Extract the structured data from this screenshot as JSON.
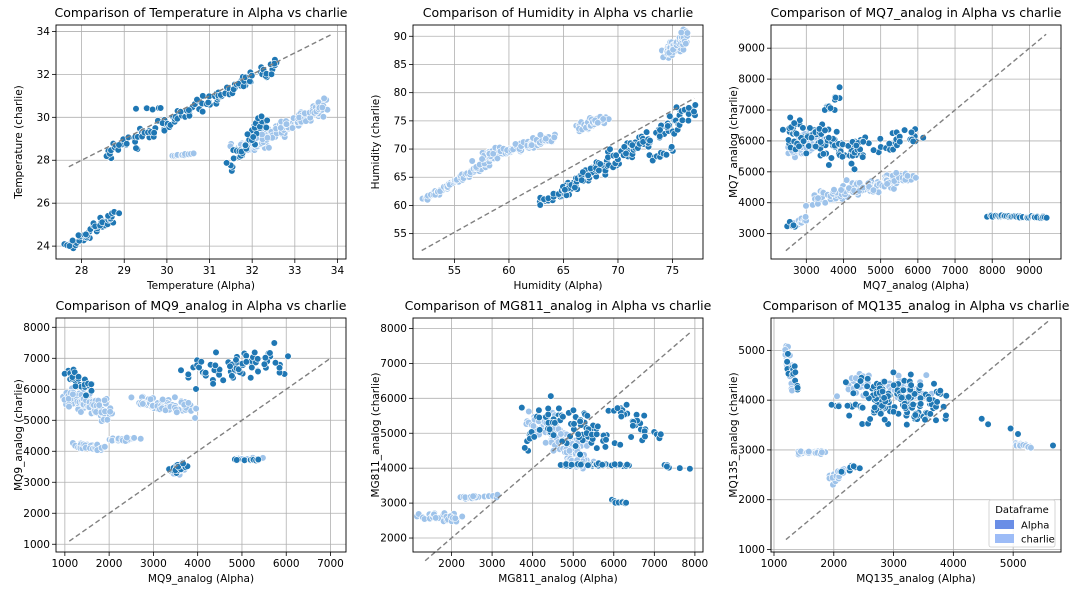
{
  "legend": {
    "title": "Dataframe",
    "entries": [
      {
        "label": "Alpha",
        "color": "#6a8ee6"
      },
      {
        "label": "charlie",
        "color": "#9dbcf7"
      }
    ]
  },
  "colors": {
    "dark_point": "#1f77b4",
    "light_point": "#9ec3ea",
    "diagonal": "#808080",
    "grid": "#b0b0b0"
  },
  "chart_data": [
    {
      "type": "scatter",
      "title": "Comparison of Temperature in Alpha vs charlie",
      "xlabel": "Temperature (Alpha)",
      "ylabel": "Temperature (charlie)",
      "xlim": [
        27.4,
        34.2
      ],
      "ylim": [
        23.4,
        34.3
      ],
      "xticks": [
        28,
        29,
        30,
        31,
        32,
        33,
        34
      ],
      "yticks": [
        24,
        26,
        28,
        30,
        32,
        34
      ],
      "diagonal": [
        [
          27.7,
          27.7
        ],
        [
          33.9,
          33.9
        ]
      ],
      "clusters": [
        {
          "tone": "dark",
          "from": [
            27.7,
            24.0
          ],
          "to": [
            28.8,
            25.5
          ],
          "n": 45,
          "spread": [
            0.12,
            0.2
          ]
        },
        {
          "tone": "dark",
          "from": [
            28.6,
            28.3
          ],
          "to": [
            32.6,
            32.4
          ],
          "n": 130,
          "spread": [
            0.12,
            0.3
          ]
        },
        {
          "tone": "dark",
          "from": [
            29.3,
            30.4
          ],
          "to": [
            29.9,
            30.5
          ],
          "n": 6,
          "spread": [
            0.1,
            0.1
          ]
        },
        {
          "tone": "dark",
          "from": [
            31.5,
            27.8
          ],
          "to": [
            32.3,
            30.0
          ],
          "n": 40,
          "spread": [
            0.15,
            0.3
          ]
        },
        {
          "tone": "light",
          "from": [
            30.1,
            28.2
          ],
          "to": [
            30.6,
            28.3
          ],
          "n": 12,
          "spread": [
            0.05,
            0.03
          ]
        },
        {
          "tone": "light",
          "from": [
            31.6,
            28.4
          ],
          "to": [
            33.8,
            30.6
          ],
          "n": 150,
          "spread": [
            0.15,
            0.25
          ]
        },
        {
          "tone": "light",
          "from": [
            31.8,
            28.6
          ],
          "to": [
            32.4,
            28.9
          ],
          "n": 40,
          "spread": [
            0.2,
            0.2
          ]
        }
      ]
    },
    {
      "type": "scatter",
      "title": "Comparison of Humidity in Alpha vs charlie",
      "xlabel": "Humidity (Alpha)",
      "ylabel": "Humidity (charlie)",
      "xlim": [
        51.2,
        77.8
      ],
      "ylim": [
        50.5,
        92.0
      ],
      "xticks": [
        55,
        60,
        65,
        70,
        75
      ],
      "yticks": [
        55,
        60,
        65,
        70,
        75,
        80,
        85,
        90
      ],
      "diagonal": [
        [
          52,
          52
        ],
        [
          77,
          79
        ]
      ],
      "clusters": [
        {
          "tone": "light",
          "from": [
            52.2,
            61.0
          ],
          "to": [
            58,
            67.5
          ],
          "n": 70,
          "spread": [
            0.3,
            0.4
          ]
        },
        {
          "tone": "light",
          "from": [
            57.5,
            68.5
          ],
          "to": [
            64,
            72
          ],
          "n": 110,
          "spread": [
            0.6,
            0.8
          ]
        },
        {
          "tone": "light",
          "from": [
            66.5,
            73.5
          ],
          "to": [
            68.5,
            75.5
          ],
          "n": 60,
          "spread": [
            0.5,
            0.8
          ]
        },
        {
          "tone": "light",
          "from": [
            74.3,
            87
          ],
          "to": [
            76.3,
            90
          ],
          "n": 80,
          "spread": [
            0.4,
            1.0
          ]
        },
        {
          "tone": "dark",
          "from": [
            63,
            60.5
          ],
          "to": [
            66,
            63
          ],
          "n": 25,
          "spread": [
            0.5,
            0.5
          ]
        },
        {
          "tone": "dark",
          "from": [
            64.5,
            62
          ],
          "to": [
            77,
            77
          ],
          "n": 140,
          "spread": [
            0.7,
            1.2
          ]
        },
        {
          "tone": "dark",
          "from": [
            73,
            68
          ],
          "to": [
            75,
            70
          ],
          "n": 12,
          "spread": [
            0.5,
            0.8
          ]
        }
      ]
    },
    {
      "type": "scatter",
      "title": "Comparison of MQ7_analog in Alpha vs charlie",
      "xlabel": "MQ7_analog (Alpha)",
      "ylabel": "MQ7_analog (charlie)",
      "xlim": [
        2050,
        9850
      ],
      "ylim": [
        2180,
        9750
      ],
      "xticks": [
        3000,
        4000,
        5000,
        6000,
        7000,
        8000,
        9000
      ],
      "yticks": [
        3000,
        4000,
        5000,
        6000,
        7000,
        8000,
        9000
      ],
      "diagonal": [
        [
          2450,
          2450
        ],
        [
          9450,
          9450
        ]
      ],
      "clusters": [
        {
          "tone": "dark",
          "from": [
            2500,
            6300
          ],
          "to": [
            4600,
            5600
          ],
          "n": 110,
          "spread": [
            250,
            500
          ]
        },
        {
          "tone": "dark",
          "from": [
            3500,
            7000
          ],
          "to": [
            3900,
            7500
          ],
          "n": 12,
          "spread": [
            150,
            250
          ]
        },
        {
          "tone": "dark",
          "from": [
            2500,
            3300
          ],
          "to": [
            2700,
            3300
          ],
          "n": 6,
          "spread": [
            60,
            80
          ]
        },
        {
          "tone": "dark",
          "from": [
            5000,
            5800
          ],
          "to": [
            6000,
            6300
          ],
          "n": 25,
          "spread": [
            250,
            300
          ]
        },
        {
          "tone": "dark",
          "from": [
            7900,
            3580
          ],
          "to": [
            9450,
            3520
          ],
          "n": 45,
          "spread": [
            40,
            30
          ]
        },
        {
          "tone": "light",
          "from": [
            2600,
            5600
          ],
          "to": [
            3300,
            6200
          ],
          "n": 60,
          "spread": [
            200,
            250
          ]
        },
        {
          "tone": "light",
          "from": [
            3200,
            4100
          ],
          "to": [
            5800,
            4900
          ],
          "n": 130,
          "spread": [
            250,
            200
          ]
        },
        {
          "tone": "light",
          "from": [
            2700,
            3300
          ],
          "to": [
            3000,
            3500
          ],
          "n": 12,
          "spread": [
            60,
            80
          ]
        }
      ]
    },
    {
      "type": "scatter",
      "title": "Comparison of MQ9_analog in Alpha vs charlie",
      "xlabel": "MQ9_analog (Alpha)",
      "ylabel": "MQ9_analog (charlie)",
      "xlim": [
        800,
        7350
      ],
      "ylim": [
        750,
        8300
      ],
      "xticks": [
        1000,
        2000,
        3000,
        4000,
        5000,
        6000,
        7000
      ],
      "yticks": [
        1000,
        2000,
        3000,
        4000,
        5000,
        6000,
        7000,
        8000
      ],
      "diagonal": [
        [
          1100,
          1100
        ],
        [
          7000,
          7000
        ]
      ],
      "clusters": [
        {
          "tone": "light",
          "from": [
            1050,
            5800
          ],
          "to": [
            2000,
            5300
          ],
          "n": 90,
          "spread": [
            120,
            300
          ]
        },
        {
          "tone": "light",
          "from": [
            1300,
            4200
          ],
          "to": [
            1800,
            4100
          ],
          "n": 40,
          "spread": [
            100,
            80
          ]
        },
        {
          "tone": "light",
          "from": [
            2000,
            4400
          ],
          "to": [
            2600,
            4400
          ],
          "n": 20,
          "spread": [
            100,
            60
          ]
        },
        {
          "tone": "light",
          "from": [
            2700,
            5600
          ],
          "to": [
            3800,
            5400
          ],
          "n": 70,
          "spread": [
            200,
            200
          ]
        },
        {
          "tone": "light",
          "from": [
            3400,
            3300
          ],
          "to": [
            3700,
            3500
          ],
          "n": 25,
          "spread": [
            80,
            120
          ]
        },
        {
          "tone": "light",
          "from": [
            4900,
            3750
          ],
          "to": [
            5400,
            3750
          ],
          "n": 25,
          "spread": [
            100,
            30
          ]
        },
        {
          "tone": "dark",
          "from": [
            1050,
            6500
          ],
          "to": [
            1600,
            6000
          ],
          "n": 25,
          "spread": [
            100,
            300
          ]
        },
        {
          "tone": "dark",
          "from": [
            3900,
            6500
          ],
          "to": [
            5800,
            7000
          ],
          "n": 70,
          "spread": [
            400,
            400
          ]
        },
        {
          "tone": "dark",
          "from": [
            3400,
            3300
          ],
          "to": [
            3700,
            3600
          ],
          "n": 20,
          "spread": [
            80,
            150
          ]
        },
        {
          "tone": "dark",
          "from": [
            4900,
            3720
          ],
          "to": [
            5400,
            3720
          ],
          "n": 12,
          "spread": [
            120,
            20
          ]
        }
      ]
    },
    {
      "type": "scatter",
      "title": "Comparison of MG811_analog in Alpha vs charlie",
      "xlabel": "MG811_analog (Alpha)",
      "ylabel": "MG811_analog (charlie)",
      "xlim": [
        1050,
        8200
      ],
      "ylim": [
        1600,
        8300
      ],
      "xticks": [
        2000,
        3000,
        4000,
        5000,
        6000,
        7000,
        8000
      ],
      "yticks": [
        2000,
        3000,
        4000,
        5000,
        6000,
        7000,
        8000
      ],
      "diagonal": [
        [
          1350,
          1350
        ],
        [
          7900,
          7900
        ]
      ],
      "clusters": [
        {
          "tone": "light",
          "from": [
            1350,
            2650
          ],
          "to": [
            2100,
            2550
          ],
          "n": 35,
          "spread": [
            150,
            80
          ]
        },
        {
          "tone": "light",
          "from": [
            2200,
            3150
          ],
          "to": [
            3100,
            3200
          ],
          "n": 25,
          "spread": [
            150,
            40
          ]
        },
        {
          "tone": "light",
          "from": [
            4100,
            5500
          ],
          "to": [
            5300,
            4200
          ],
          "n": 120,
          "spread": [
            300,
            350
          ]
        },
        {
          "tone": "dark",
          "from": [
            3800,
            4700
          ],
          "to": [
            4000,
            5000
          ],
          "n": 8,
          "spread": [
            80,
            250
          ]
        },
        {
          "tone": "dark",
          "from": [
            4200,
            5600
          ],
          "to": [
            5800,
            4800
          ],
          "n": 70,
          "spread": [
            400,
            400
          ]
        },
        {
          "tone": "dark",
          "from": [
            4800,
            4100
          ],
          "to": [
            6400,
            4100
          ],
          "n": 40,
          "spread": [
            300,
            40
          ]
        },
        {
          "tone": "dark",
          "from": [
            6000,
            5800
          ],
          "to": [
            7000,
            4900
          ],
          "n": 30,
          "spread": [
            250,
            300
          ]
        },
        {
          "tone": "dark",
          "from": [
            6000,
            3050
          ],
          "to": [
            6300,
            3000
          ],
          "n": 8,
          "spread": [
            80,
            40
          ]
        },
        {
          "tone": "dark",
          "from": [
            7100,
            4100
          ],
          "to": [
            7900,
            4000
          ],
          "n": 6,
          "spread": [
            200,
            40
          ]
        }
      ]
    },
    {
      "type": "scatter",
      "title": "Comparison of MQ135_analog in Alpha vs charlie",
      "xlabel": "MQ135_analog (Alpha)",
      "ylabel": "MQ135_analog (charlie)",
      "xlim": [
        950,
        5800
      ],
      "ylim": [
        950,
        5650
      ],
      "xticks": [
        1000,
        2000,
        3000,
        4000,
        5000
      ],
      "yticks": [
        1000,
        2000,
        3000,
        4000,
        5000
      ],
      "diagonal": [
        [
          1200,
          1200
        ],
        [
          5600,
          5600
        ]
      ],
      "clusters": [
        {
          "tone": "light",
          "from": [
            1200,
            5000
          ],
          "to": [
            1300,
            4300
          ],
          "n": 30,
          "spread": [
            40,
            200
          ]
        },
        {
          "tone": "light",
          "from": [
            1400,
            2950
          ],
          "to": [
            1800,
            2950
          ],
          "n": 25,
          "spread": [
            100,
            30
          ]
        },
        {
          "tone": "light",
          "from": [
            1950,
            2400
          ],
          "to": [
            2200,
            2600
          ],
          "n": 20,
          "spread": [
            60,
            80
          ]
        },
        {
          "tone": "light",
          "from": [
            2400,
            4300
          ],
          "to": [
            3500,
            4200
          ],
          "n": 80,
          "spread": [
            300,
            250
          ]
        },
        {
          "tone": "light",
          "from": [
            5000,
            3120
          ],
          "to": [
            5300,
            3050
          ],
          "n": 20,
          "spread": [
            80,
            30
          ]
        },
        {
          "tone": "dark",
          "from": [
            1200,
            4700
          ],
          "to": [
            1400,
            4300
          ],
          "n": 15,
          "spread": [
            60,
            200
          ]
        },
        {
          "tone": "dark",
          "from": [
            2000,
            3900
          ],
          "to": [
            2500,
            3850
          ],
          "n": 12,
          "spread": [
            150,
            50
          ]
        },
        {
          "tone": "dark",
          "from": [
            2500,
            4000
          ],
          "to": [
            3700,
            4000
          ],
          "n": 140,
          "spread": [
            300,
            380
          ]
        },
        {
          "tone": "dark",
          "from": [
            2200,
            2600
          ],
          "to": [
            2400,
            2700
          ],
          "n": 8,
          "spread": [
            60,
            60
          ]
        },
        {
          "tone": "dark",
          "from": [
            3900,
            3850
          ],
          "to": [
            5600,
            3050
          ],
          "n": 6,
          "spread": [
            200,
            100
          ]
        }
      ]
    }
  ]
}
